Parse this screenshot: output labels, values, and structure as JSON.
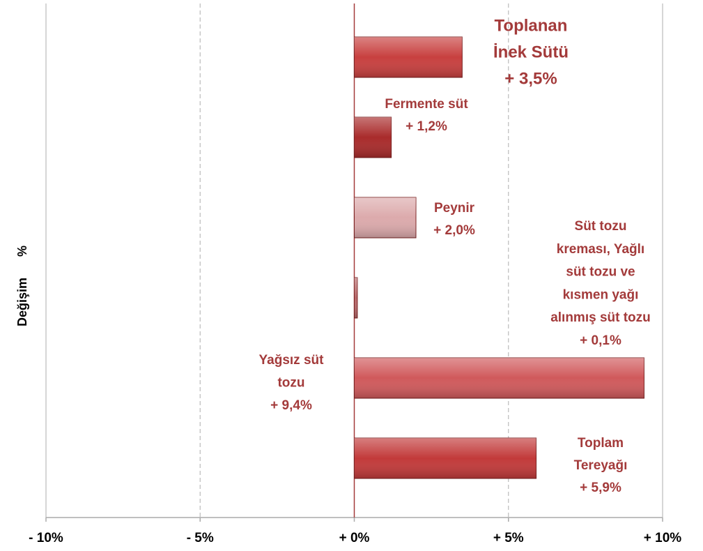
{
  "chart_data": {
    "type": "barh",
    "ylabel": "Değişim      %",
    "categories": [
      [
        "Toplanan",
        "İnek Sütü"
      ],
      [
        "Fermente süt"
      ],
      [
        "Peynir"
      ],
      [
        "Süt tozu",
        "kreması, Yağlı",
        "süt tozu ve",
        "kısmen yağı",
        "alınmış süt tozu"
      ],
      [
        "Yağsız süt",
        "tozu"
      ],
      [
        "Toplam",
        "Tereyağı"
      ]
    ],
    "values": [
      3.5,
      1.2,
      2.0,
      0.1,
      9.4,
      5.9
    ],
    "value_labels": [
      "+ 3,5%",
      "+ 1,2%",
      "+ 2,0%",
      "+ 0,1%",
      "+ 9,4%",
      "+ 5,9%"
    ],
    "colors": [
      "#c8403f",
      "#a92b2b",
      "#dcaaac",
      "#b8696b",
      "#d05a5c",
      "#c23a3a"
    ],
    "xlim": [
      -10,
      10
    ],
    "xticks": [
      {
        "value": -10,
        "label": "- 10%"
      },
      {
        "value": -5,
        "label": "- 5%"
      },
      {
        "value": 0,
        "label": "+ 0%"
      },
      {
        "value": 5,
        "label": "+ 5%"
      },
      {
        "value": 10,
        "label": "+ 10%"
      }
    ],
    "grid": true
  }
}
